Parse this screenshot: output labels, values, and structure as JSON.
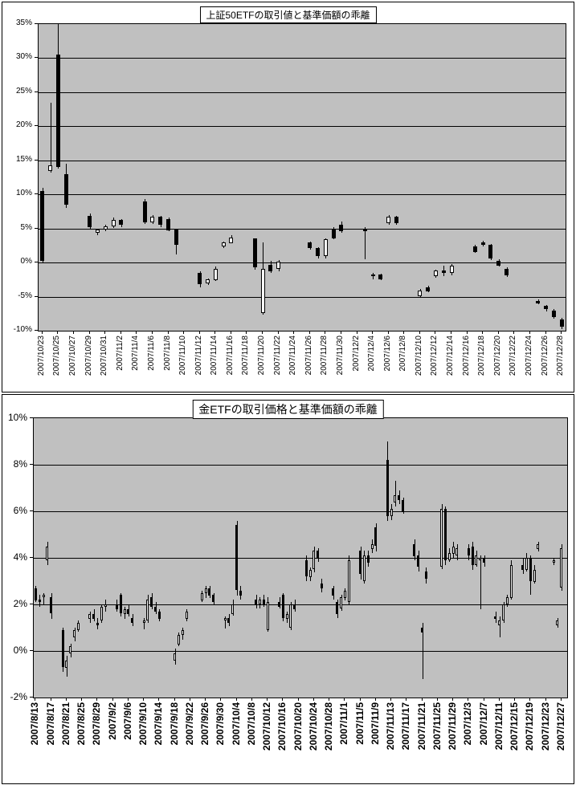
{
  "page": {
    "description": "Two Excel-style candlestick charts of ETF price vs NAV deviation"
  },
  "chart_data": [
    {
      "type": "candlestick",
      "title": "上証50ETFの取引値と基準価額の乖離",
      "xlabel": "",
      "ylabel": "",
      "ylim": [
        -10,
        35
      ],
      "y_step": 5,
      "y_tick_labels": [
        "35%",
        "30%",
        "25%",
        "20%",
        "15%",
        "10%",
        "5%",
        "0%",
        "-5%",
        "-10%"
      ],
      "x_start": "2007/10/23",
      "x_end": "2007/12/28",
      "x_tick_labels": [
        "2007/10/23",
        "2007/10/25",
        "2007/10/27",
        "2007/10/29",
        "2007/10/31",
        "2007/11/2",
        "2007/11/4",
        "2007/11/6",
        "2007/11/8",
        "2007/11/10",
        "2007/11/12",
        "2007/11/14",
        "2007/11/16",
        "2007/11/18",
        "2007/11/20",
        "2007/11/22",
        "2007/11/24",
        "2007/11/26",
        "2007/11/28",
        "2007/11/30",
        "2007/12/2",
        "2007/12/4",
        "2007/12/6",
        "2007/12/8",
        "2007/12/10",
        "2007/12/12",
        "2007/12/14",
        "2007/12/16",
        "2007/12/18",
        "2007/12/20",
        "2007/12/22",
        "2007/12/24",
        "2007/12/26",
        "2007/12/28"
      ],
      "grid": true,
      "plot_bg": "#c0c0c0",
      "up_color": "#ffffff",
      "down_color": "#000000",
      "candles": [
        [
          "2007/10/23",
          10.5,
          11.0,
          0.0,
          0.3
        ],
        [
          "2007/10/24",
          13.5,
          23.5,
          13.2,
          14.3
        ],
        [
          "2007/10/25",
          30.5,
          35.8,
          13.8,
          14.0
        ],
        [
          "2007/10/26",
          13.0,
          14.5,
          8.0,
          8.5
        ],
        [
          "2007/10/29",
          6.8,
          7.2,
          4.9,
          5.1
        ],
        [
          "2007/10/30",
          4.3,
          5.0,
          4.1,
          4.8
        ],
        [
          "2007/10/31",
          4.8,
          5.6,
          4.6,
          5.3
        ],
        [
          "2007/11/1",
          5.3,
          6.6,
          5.1,
          6.2
        ],
        [
          "2007/11/2",
          6.2,
          6.4,
          5.2,
          5.5
        ],
        [
          "2007/11/5",
          9.0,
          9.3,
          5.6,
          5.9
        ],
        [
          "2007/11/6",
          5.9,
          7.0,
          5.7,
          6.7
        ],
        [
          "2007/11/7",
          6.7,
          6.9,
          5.3,
          5.5
        ],
        [
          "2007/11/8",
          6.4,
          6.6,
          4.6,
          4.8
        ],
        [
          "2007/11/9",
          4.8,
          4.9,
          1.2,
          2.6
        ],
        [
          "2007/11/12",
          -1.5,
          -1.3,
          -3.6,
          -3.1
        ],
        [
          "2007/11/13",
          -3.1,
          -2.3,
          -3.3,
          -2.5
        ],
        [
          "2007/11/14",
          -2.5,
          -0.6,
          -2.7,
          -0.9
        ],
        [
          "2007/11/15",
          2.3,
          3.1,
          2.2,
          2.9
        ],
        [
          "2007/11/16",
          2.9,
          4.0,
          2.8,
          3.7
        ],
        [
          "2007/11/19",
          3.5,
          3.6,
          -1.0,
          -0.7
        ],
        [
          "2007/11/20",
          -7.4,
          3.0,
          -7.6,
          -0.9
        ],
        [
          "2007/11/21",
          -0.3,
          0.2,
          -1.6,
          -1.3
        ],
        [
          "2007/11/22",
          -1.0,
          0.4,
          -1.2,
          0.1
        ],
        [
          "2007/11/26",
          2.9,
          3.1,
          1.9,
          2.1
        ],
        [
          "2007/11/27",
          2.1,
          2.3,
          0.6,
          0.9
        ],
        [
          "2007/11/28",
          0.9,
          3.6,
          0.7,
          3.4
        ],
        [
          "2007/11/29",
          5.0,
          5.2,
          3.4,
          3.6
        ],
        [
          "2007/11/30",
          5.6,
          6.0,
          4.4,
          4.6
        ],
        [
          "2007/12/3",
          5.0,
          5.2,
          0.5,
          4.6
        ],
        [
          "2007/12/4",
          -1.9,
          -1.5,
          -2.4,
          -1.7
        ],
        [
          "2007/12/5",
          -1.7,
          -1.6,
          -2.6,
          -2.4
        ],
        [
          "2007/12/6",
          5.8,
          7.0,
          5.6,
          6.7
        ],
        [
          "2007/12/7",
          6.7,
          6.8,
          5.5,
          5.7
        ],
        [
          "2007/12/10",
          -4.9,
          -3.9,
          -5.1,
          -4.1
        ],
        [
          "2007/12/11",
          -3.6,
          -3.4,
          -4.4,
          -4.2
        ],
        [
          "2007/12/12",
          -2.0,
          -1.0,
          -2.2,
          -1.2
        ],
        [
          "2007/12/13",
          -1.2,
          -0.4,
          -1.9,
          -1.6
        ],
        [
          "2007/12/14",
          -1.6,
          -0.2,
          -1.8,
          -0.5
        ],
        [
          "2007/12/17",
          2.4,
          2.6,
          1.4,
          1.6
        ],
        [
          "2007/12/18",
          3.0,
          3.2,
          2.4,
          2.6
        ],
        [
          "2007/12/19",
          2.6,
          2.7,
          0.4,
          0.6
        ],
        [
          "2007/12/20",
          0.3,
          0.5,
          -0.6,
          -0.4
        ],
        [
          "2007/12/21",
          -0.9,
          -0.7,
          -2.1,
          -1.9
        ],
        [
          "2007/12/25",
          -5.6,
          -5.4,
          -6.1,
          -5.9
        ],
        [
          "2007/12/26",
          -6.4,
          -6.2,
          -7.1,
          -6.9
        ],
        [
          "2007/12/27",
          -7.0,
          -6.8,
          -8.2,
          -8.0
        ],
        [
          "2007/12/28",
          -8.3,
          -8.1,
          -9.7,
          -9.4
        ]
      ]
    },
    {
      "type": "candlestick",
      "title": "金ETFの取引価格と基準価額の乖離",
      "xlabel": "",
      "ylabel": "",
      "ylim": [
        -2,
        10
      ],
      "y_step": 2,
      "y_tick_labels": [
        "10%",
        "8%",
        "6%",
        "4%",
        "2%",
        "0%",
        "-2%"
      ],
      "x_start": "2007/8/13",
      "x_end": "2007/12/28",
      "x_tick_labels": [
        "2007/8/13",
        "2007/8/17",
        "2007/8/21",
        "2007/8/25",
        "2007/8/29",
        "2007/9/2",
        "2007/9/6",
        "2007/9/10",
        "2007/9/14",
        "2007/9/18",
        "2007/9/22",
        "2007/9/26",
        "2007/9/30",
        "2007/10/4",
        "2007/10/8",
        "2007/10/12",
        "2007/10/16",
        "2007/10/20",
        "2007/10/24",
        "2007/10/28",
        "2007/11/1",
        "2007/11/5",
        "2007/11/9",
        "2007/11/13",
        "2007/11/17",
        "2007/11/21",
        "2007/11/25",
        "2007/11/29",
        "2007/12/3",
        "2007/12/7",
        "2007/12/11",
        "2007/12/15",
        "2007/12/19",
        "2007/12/23",
        "2007/12/27"
      ],
      "grid": true,
      "plot_bg": "#c0c0c0",
      "up_color": "#ffffff",
      "down_color": "#000000",
      "candles": [
        [
          "2007/8/13",
          2.7,
          2.8,
          2.1,
          2.2
        ],
        [
          "2007/8/14",
          2.2,
          2.4,
          1.9,
          2.1
        ],
        [
          "2007/8/15",
          2.3,
          2.5,
          2.0,
          2.4
        ],
        [
          "2007/8/16",
          3.9,
          4.7,
          3.7,
          4.5
        ],
        [
          "2007/8/17",
          2.3,
          2.5,
          1.4,
          1.6
        ],
        [
          "2007/8/20",
          0.9,
          1.0,
          -0.9,
          -0.7
        ],
        [
          "2007/8/21",
          -0.7,
          -0.2,
          -1.1,
          -0.4
        ],
        [
          "2007/8/22",
          -0.1,
          0.3,
          -0.3,
          0.2
        ],
        [
          "2007/8/23",
          0.6,
          1.0,
          0.4,
          0.9
        ],
        [
          "2007/8/24",
          0.9,
          1.3,
          0.8,
          1.2
        ],
        [
          "2007/8/27",
          1.4,
          1.7,
          1.2,
          1.6
        ],
        [
          "2007/8/28",
          1.6,
          1.8,
          1.3,
          1.4
        ],
        [
          "2007/8/29",
          1.2,
          1.4,
          0.9,
          1.1
        ],
        [
          "2007/8/30",
          1.3,
          2.0,
          1.2,
          1.9
        ],
        [
          "2007/8/31",
          1.9,
          2.2,
          1.7,
          2.0
        ],
        [
          "2007/9/3",
          2.0,
          2.2,
          1.7,
          1.8
        ],
        [
          "2007/9/4",
          2.4,
          2.5,
          1.5,
          1.6
        ],
        [
          "2007/9/5",
          1.6,
          1.9,
          1.4,
          1.8
        ],
        [
          "2007/9/6",
          1.8,
          2.0,
          1.5,
          1.6
        ],
        [
          "2007/9/7",
          1.4,
          1.6,
          1.1,
          1.2
        ],
        [
          "2007/9/10",
          1.2,
          1.4,
          0.9,
          1.3
        ],
        [
          "2007/9/11",
          1.3,
          2.4,
          1.2,
          2.2
        ],
        [
          "2007/9/12",
          2.3,
          2.5,
          1.8,
          1.9
        ],
        [
          "2007/9/13",
          1.9,
          2.1,
          1.6,
          1.7
        ],
        [
          "2007/9/14",
          1.7,
          1.8,
          1.3,
          1.4
        ],
        [
          "2007/9/18",
          -0.4,
          0.1,
          -0.6,
          -0.1
        ],
        [
          "2007/9/19",
          0.3,
          0.8,
          0.2,
          0.7
        ],
        [
          "2007/9/20",
          0.7,
          1.0,
          0.5,
          0.9
        ],
        [
          "2007/9/21",
          1.4,
          1.8,
          1.3,
          1.7
        ],
        [
          "2007/9/25",
          2.2,
          2.6,
          2.1,
          2.5
        ],
        [
          "2007/9/26",
          2.5,
          2.8,
          2.3,
          2.7
        ],
        [
          "2007/9/27",
          2.7,
          2.8,
          2.3,
          2.4
        ],
        [
          "2007/9/28",
          2.4,
          2.5,
          2.0,
          2.1
        ],
        [
          "2007/10/1",
          1.3,
          1.5,
          1.0,
          1.4
        ],
        [
          "2007/10/2",
          1.4,
          1.6,
          1.1,
          1.2
        ],
        [
          "2007/10/3",
          1.6,
          2.2,
          1.5,
          2.0
        ],
        [
          "2007/10/4",
          5.4,
          5.6,
          2.4,
          2.6
        ],
        [
          "2007/10/5",
          2.6,
          2.8,
          2.2,
          2.4
        ],
        [
          "2007/10/9",
          2.2,
          2.4,
          1.8,
          2.0
        ],
        [
          "2007/10/10",
          2.0,
          2.3,
          1.8,
          2.2
        ],
        [
          "2007/10/11",
          2.2,
          2.4,
          1.9,
          2.0
        ],
        [
          "2007/10/12",
          0.9,
          2.3,
          0.8,
          2.1
        ],
        [
          "2007/10/15",
          2.1,
          2.3,
          1.8,
          1.9
        ],
        [
          "2007/10/16",
          2.4,
          2.5,
          1.3,
          1.4
        ],
        [
          "2007/10/17",
          1.4,
          1.7,
          1.2,
          1.6
        ],
        [
          "2007/10/18",
          1.0,
          2.1,
          0.9,
          2.0
        ],
        [
          "2007/10/19",
          2.0,
          2.2,
          1.7,
          1.8
        ],
        [
          "2007/10/22",
          3.9,
          4.1,
          3.0,
          3.2
        ],
        [
          "2007/10/23",
          3.2,
          3.6,
          3.0,
          3.5
        ],
        [
          "2007/10/24",
          3.5,
          4.5,
          3.4,
          4.3
        ],
        [
          "2007/10/25",
          4.3,
          4.4,
          3.8,
          4.0
        ],
        [
          "2007/10/26",
          2.9,
          3.1,
          2.5,
          2.7
        ],
        [
          "2007/10/29",
          2.7,
          2.8,
          2.2,
          2.4
        ],
        [
          "2007/10/30",
          2.1,
          2.2,
          1.4,
          1.6
        ],
        [
          "2007/10/31",
          1.8,
          2.4,
          1.7,
          2.3
        ],
        [
          "2007/11/1",
          2.3,
          2.7,
          2.2,
          2.6
        ],
        [
          "2007/11/2",
          2.1,
          4.1,
          2.0,
          3.9
        ],
        [
          "2007/11/5",
          4.3,
          4.5,
          3.1,
          3.3
        ],
        [
          "2007/11/6",
          3.0,
          4.3,
          2.9,
          4.1
        ],
        [
          "2007/11/7",
          4.1,
          4.3,
          3.6,
          3.8
        ],
        [
          "2007/11/8",
          4.4,
          4.8,
          4.2,
          4.6
        ],
        [
          "2007/11/9",
          5.3,
          5.5,
          4.3,
          4.5
        ],
        [
          "2007/11/12",
          8.2,
          9.0,
          5.6,
          5.8
        ],
        [
          "2007/11/13",
          5.8,
          6.3,
          5.6,
          6.1
        ],
        [
          "2007/11/14",
          6.4,
          7.3,
          6.2,
          6.7
        ],
        [
          "2007/11/15",
          6.7,
          6.9,
          6.3,
          6.5
        ],
        [
          "2007/11/16",
          6.5,
          6.6,
          5.9,
          6.0
        ],
        [
          "2007/11/19",
          4.6,
          4.8,
          3.9,
          4.1
        ],
        [
          "2007/11/20",
          4.1,
          4.3,
          3.4,
          3.6
        ],
        [
          "2007/11/21",
          1.0,
          1.2,
          -1.2,
          0.8
        ],
        [
          "2007/11/22",
          3.4,
          3.6,
          2.9,
          3.1
        ],
        [
          "2007/11/26",
          3.6,
          6.3,
          3.5,
          6.1
        ],
        [
          "2007/11/27",
          6.1,
          6.2,
          3.7,
          3.9
        ],
        [
          "2007/11/28",
          3.9,
          4.4,
          3.8,
          4.2
        ],
        [
          "2007/11/29",
          4.2,
          4.7,
          4.0,
          4.5
        ],
        [
          "2007/11/30",
          4.1,
          4.6,
          3.9,
          4.4
        ],
        [
          "2007/12/3",
          4.4,
          4.6,
          3.9,
          4.1
        ],
        [
          "2007/12/4",
          4.5,
          4.7,
          3.5,
          3.7
        ],
        [
          "2007/12/5",
          3.7,
          4.3,
          3.6,
          4.1
        ],
        [
          "2007/12/6",
          3.9,
          4.1,
          1.8,
          4.0
        ],
        [
          "2007/12/7",
          4.0,
          4.1,
          3.6,
          3.8
        ],
        [
          "2007/12/10",
          1.5,
          1.7,
          1.2,
          1.4
        ],
        [
          "2007/12/11",
          1.1,
          1.5,
          0.6,
          1.3
        ],
        [
          "2007/12/12",
          1.3,
          2.1,
          1.2,
          2.0
        ],
        [
          "2007/12/13",
          2.0,
          2.4,
          1.9,
          2.3
        ],
        [
          "2007/12/14",
          2.3,
          3.9,
          2.2,
          3.7
        ],
        [
          "2007/12/17",
          3.7,
          4.0,
          3.3,
          3.5
        ],
        [
          "2007/12/18",
          3.5,
          4.2,
          3.4,
          4.0
        ],
        [
          "2007/12/19",
          4.0,
          4.1,
          2.4,
          3.0
        ],
        [
          "2007/12/20",
          3.0,
          3.7,
          2.9,
          3.5
        ],
        [
          "2007/12/21",
          4.4,
          4.7,
          4.3,
          4.6
        ],
        [
          "2007/12/25",
          3.8,
          4.0,
          3.7,
          3.9
        ],
        [
          "2007/12/26",
          1.1,
          1.4,
          1.0,
          1.3
        ],
        [
          "2007/12/27",
          2.7,
          4.6,
          2.6,
          4.4
        ]
      ]
    }
  ]
}
